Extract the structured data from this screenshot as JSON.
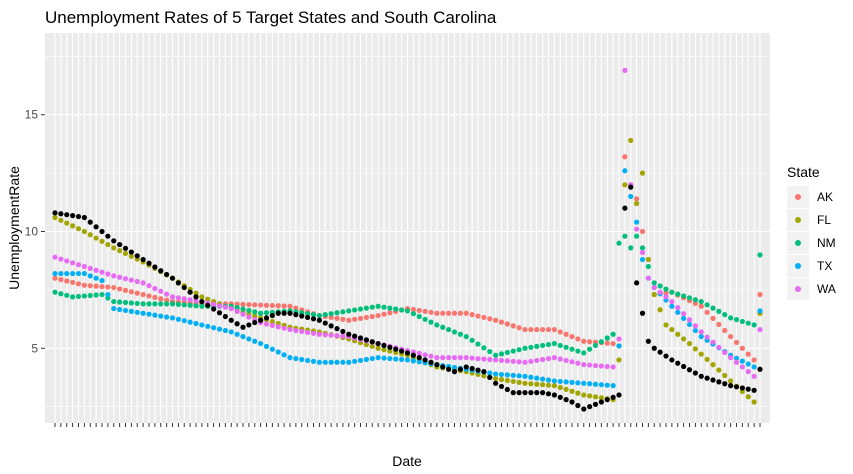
{
  "chart_data": {
    "type": "scatter",
    "title": "Unemployment Rates of 5 Target States and South Carolina",
    "xlabel": "Date",
    "ylabel": "UnemploymentRate",
    "ylim": [
      1.8,
      18.5
    ],
    "yticks": [
      5,
      10,
      15
    ],
    "grid": true,
    "legend": {
      "title": "State",
      "position": "right",
      "entries": [
        "AK",
        "FL",
        "NM",
        "TX",
        "WA"
      ]
    },
    "x_index_range": [
      0,
      120
    ],
    "series": [
      {
        "name": "AK",
        "color": "#F8766D",
        "type": "index",
        "anchors": [
          [
            0,
            8.0
          ],
          [
            5,
            7.7
          ],
          [
            10,
            7.6
          ],
          [
            15,
            7.3
          ],
          [
            20,
            7.0
          ],
          [
            25,
            6.9
          ],
          [
            30,
            6.9
          ],
          [
            40,
            6.8
          ],
          [
            45,
            6.4
          ],
          [
            50,
            6.2
          ],
          [
            55,
            6.4
          ],
          [
            60,
            6.7
          ],
          [
            65,
            6.5
          ],
          [
            70,
            6.5
          ],
          [
            75,
            6.2
          ],
          [
            80,
            5.8
          ],
          [
            85,
            5.8
          ],
          [
            90,
            5.3
          ],
          [
            95,
            5.2
          ],
          [
            96,
            5.1
          ],
          [
            97,
            13.2
          ],
          [
            98,
            12.0
          ],
          [
            99,
            11.4
          ],
          [
            100,
            10.0
          ],
          [
            101,
            8.8
          ],
          [
            102,
            7.3
          ],
          [
            105,
            7.4
          ],
          [
            110,
            6.8
          ],
          [
            115,
            5.5
          ],
          [
            119,
            4.5
          ],
          [
            120,
            7.3
          ]
        ]
      },
      {
        "name": "FL",
        "color": "#A3A500",
        "type": "index",
        "anchors": [
          [
            0,
            10.6
          ],
          [
            5,
            10.0
          ],
          [
            10,
            9.3
          ],
          [
            15,
            8.7
          ],
          [
            20,
            8.0
          ],
          [
            25,
            7.2
          ],
          [
            30,
            6.7
          ],
          [
            35,
            6.3
          ],
          [
            40,
            5.9
          ],
          [
            45,
            5.7
          ],
          [
            50,
            5.4
          ],
          [
            55,
            5.0
          ],
          [
            60,
            4.7
          ],
          [
            65,
            4.2
          ],
          [
            70,
            4.0
          ],
          [
            75,
            3.7
          ],
          [
            80,
            3.5
          ],
          [
            85,
            3.4
          ],
          [
            90,
            3.0
          ],
          [
            95,
            2.8
          ],
          [
            96,
            4.5
          ],
          [
            97,
            12.0
          ],
          [
            98,
            13.9
          ],
          [
            99,
            11.2
          ],
          [
            100,
            12.5
          ],
          [
            101,
            8.8
          ],
          [
            102,
            7.3
          ],
          [
            104,
            6.0
          ],
          [
            108,
            5.2
          ],
          [
            112,
            4.3
          ],
          [
            115,
            3.6
          ],
          [
            119,
            2.7
          ],
          [
            120,
            6.5
          ]
        ]
      },
      {
        "name": "NM",
        "color": "#00BF7D",
        "type": "index",
        "anchors": [
          [
            0,
            7.4
          ],
          [
            3,
            7.2
          ],
          [
            8,
            7.3
          ],
          [
            10,
            7.0
          ],
          [
            15,
            6.9
          ],
          [
            20,
            6.9
          ],
          [
            25,
            6.8
          ],
          [
            30,
            6.8
          ],
          [
            35,
            6.5
          ],
          [
            40,
            6.6
          ],
          [
            45,
            6.4
          ],
          [
            50,
            6.6
          ],
          [
            55,
            6.8
          ],
          [
            60,
            6.6
          ],
          [
            65,
            6.0
          ],
          [
            70,
            5.5
          ],
          [
            75,
            4.7
          ],
          [
            80,
            5.0
          ],
          [
            85,
            5.2
          ],
          [
            90,
            4.8
          ],
          [
            95,
            5.6
          ],
          [
            96,
            9.5
          ],
          [
            97,
            9.8
          ],
          [
            98,
            9.3
          ],
          [
            99,
            9.8
          ],
          [
            100,
            9.3
          ],
          [
            101,
            8.5
          ],
          [
            102,
            7.8
          ],
          [
            105,
            7.4
          ],
          [
            110,
            7.0
          ],
          [
            115,
            6.3
          ],
          [
            119,
            6.0
          ],
          [
            120,
            9.0
          ]
        ]
      },
      {
        "name": "TX",
        "color": "#00B0F6",
        "type": "index",
        "anchors": [
          [
            0,
            8.2
          ],
          [
            5,
            8.2
          ],
          [
            8,
            7.9
          ],
          [
            10,
            6.7
          ],
          [
            15,
            6.5
          ],
          [
            20,
            6.3
          ],
          [
            25,
            6.0
          ],
          [
            30,
            5.7
          ],
          [
            35,
            5.2
          ],
          [
            40,
            4.6
          ],
          [
            45,
            4.4
          ],
          [
            50,
            4.4
          ],
          [
            55,
            4.6
          ],
          [
            60,
            4.5
          ],
          [
            65,
            4.3
          ],
          [
            70,
            4.1
          ],
          [
            75,
            3.9
          ],
          [
            80,
            3.8
          ],
          [
            85,
            3.6
          ],
          [
            90,
            3.5
          ],
          [
            95,
            3.4
          ],
          [
            96,
            5.1
          ],
          [
            97,
            12.6
          ],
          [
            98,
            11.5
          ],
          [
            99,
            10.4
          ],
          [
            100,
            8.8
          ],
          [
            101,
            8.0
          ],
          [
            102,
            7.6
          ],
          [
            105,
            6.8
          ],
          [
            110,
            5.5
          ],
          [
            115,
            4.7
          ],
          [
            119,
            4.2
          ],
          [
            120,
            6.6
          ]
        ]
      },
      {
        "name": "WA",
        "color": "#E76BF3",
        "type": "index",
        "anchors": [
          [
            0,
            8.9
          ],
          [
            5,
            8.5
          ],
          [
            10,
            8.1
          ],
          [
            15,
            7.8
          ],
          [
            20,
            7.2
          ],
          [
            25,
            7.0
          ],
          [
            30,
            6.7
          ],
          [
            35,
            6.1
          ],
          [
            40,
            5.8
          ],
          [
            45,
            5.6
          ],
          [
            50,
            5.5
          ],
          [
            55,
            5.2
          ],
          [
            60,
            4.9
          ],
          [
            65,
            4.6
          ],
          [
            70,
            4.6
          ],
          [
            75,
            4.5
          ],
          [
            80,
            4.4
          ],
          [
            85,
            4.6
          ],
          [
            90,
            4.3
          ],
          [
            95,
            4.2
          ],
          [
            96,
            5.4
          ],
          [
            97,
            16.9
          ],
          [
            98,
            12.0
          ],
          [
            99,
            10.1
          ],
          [
            100,
            9.1
          ],
          [
            101,
            8.0
          ],
          [
            102,
            7.6
          ],
          [
            105,
            7.0
          ],
          [
            110,
            5.7
          ],
          [
            115,
            4.6
          ],
          [
            119,
            3.8
          ],
          [
            120,
            5.8
          ]
        ]
      },
      {
        "type": "index",
        "color": "#000000",
        "anchors": [
          [
            0,
            10.8
          ],
          [
            5,
            10.6
          ],
          [
            10,
            9.6
          ],
          [
            15,
            8.8
          ],
          [
            20,
            8.0
          ],
          [
            25,
            7.0
          ],
          [
            30,
            6.2
          ],
          [
            32,
            5.9
          ],
          [
            35,
            6.2
          ],
          [
            38,
            6.5
          ],
          [
            40,
            6.5
          ],
          [
            45,
            6.2
          ],
          [
            50,
            5.6
          ],
          [
            55,
            5.2
          ],
          [
            60,
            4.8
          ],
          [
            65,
            4.3
          ],
          [
            68,
            4.0
          ],
          [
            70,
            4.2
          ],
          [
            73,
            4.0
          ],
          [
            75,
            3.5
          ],
          [
            78,
            3.1
          ],
          [
            83,
            3.1
          ],
          [
            85,
            3.0
          ],
          [
            88,
            2.7
          ],
          [
            90,
            2.4
          ],
          [
            95,
            2.9
          ],
          [
            96,
            3.0
          ],
          [
            97,
            11.0
          ],
          [
            98,
            11.9
          ],
          [
            99,
            7.8
          ],
          [
            100,
            6.5
          ],
          [
            101,
            5.3
          ],
          [
            102,
            5.0
          ],
          [
            105,
            4.5
          ],
          [
            110,
            3.8
          ],
          [
            115,
            3.4
          ],
          [
            119,
            3.2
          ],
          [
            120,
            4.1
          ]
        ]
      }
    ]
  }
}
